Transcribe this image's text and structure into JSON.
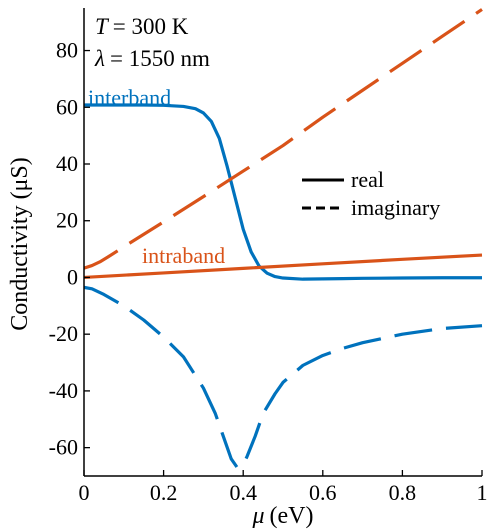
{
  "chart_data": {
    "type": "line",
    "xlabel_symbol": "μ",
    "xlabel_unit": "(eV)",
    "ylabel": "Conductivity (μS)",
    "xlim": [
      0,
      1
    ],
    "ylim": [
      -70,
      95
    ],
    "x_ticks": [
      "0",
      "0.2",
      "0.4",
      "0.6",
      "0.8",
      "1"
    ],
    "x_tick_values": [
      0,
      0.2,
      0.4,
      0.6,
      0.8,
      1
    ],
    "y_ticks": [
      "-60",
      "-40",
      "-20",
      "0",
      "20",
      "40",
      "60",
      "80"
    ],
    "y_tick_values": [
      -60,
      -40,
      -20,
      0,
      20,
      40,
      60,
      80
    ],
    "grid": false,
    "parameters": {
      "T_symbol": "T",
      "T_value": "= 300 K",
      "lambda_symbol": "λ",
      "lambda_value": "= 1550 nm"
    },
    "legend": {
      "placement": "right",
      "entries": [
        {
          "label": "real",
          "style": "solid"
        },
        {
          "label": "imaginary",
          "style": "dashed"
        }
      ]
    },
    "series_labels": {
      "interband": "interband",
      "intraband": "intraband"
    },
    "colors": {
      "interband": "#0072BD",
      "intraband": "#D95319",
      "axes": "#000000"
    },
    "series": [
      {
        "group": "interband",
        "part": "real",
        "x": [
          0,
          0.05,
          0.1,
          0.15,
          0.2,
          0.25,
          0.28,
          0.3,
          0.32,
          0.34,
          0.36,
          0.38,
          0.4,
          0.42,
          0.44,
          0.46,
          0.48,
          0.5,
          0.55,
          0.6,
          0.65,
          0.7,
          0.8,
          0.9,
          1.0
        ],
        "y": [
          60.8,
          60.8,
          60.8,
          60.8,
          60.7,
          60.3,
          59.5,
          58,
          55,
          49,
          39,
          28,
          17,
          9,
          4,
          1.5,
          0.3,
          -0.2,
          -0.6,
          -0.5,
          -0.4,
          -0.3,
          -0.2,
          -0.1,
          -0.1
        ]
      },
      {
        "group": "interband",
        "part": "imaginary",
        "x": [
          0,
          0.02,
          0.05,
          0.1,
          0.15,
          0.2,
          0.25,
          0.3,
          0.33,
          0.35,
          0.37,
          0.385,
          0.4,
          0.41,
          0.43,
          0.45,
          0.48,
          0.5,
          0.55,
          0.6,
          0.65,
          0.7,
          0.8,
          0.9,
          1.0
        ],
        "y": [
          -3.5,
          -4,
          -6,
          -10,
          -15,
          -21,
          -28,
          -39,
          -48,
          -56,
          -64,
          -67,
          -66,
          -63,
          -56,
          -48,
          -41,
          -37,
          -31,
          -27.5,
          -25,
          -23,
          -20,
          -18,
          -17
        ]
      },
      {
        "group": "intraband",
        "part": "real",
        "x": [
          0,
          0.2,
          0.4,
          0.6,
          0.8,
          1.0
        ],
        "y": [
          0,
          1.6,
          3.2,
          4.8,
          6.4,
          7.9
        ]
      },
      {
        "group": "intraband",
        "part": "imaginary",
        "x": [
          0,
          0.02,
          0.04,
          0.06,
          0.08,
          0.1,
          0.2,
          0.3,
          0.4,
          0.5,
          0.6,
          0.7,
          0.8,
          0.9,
          1.0
        ],
        "y": [
          3.3,
          4.2,
          5.5,
          7.2,
          9,
          10.8,
          19.6,
          28.5,
          37.5,
          46.5,
          56.5,
          66,
          75.5,
          85,
          94.5
        ]
      }
    ]
  }
}
